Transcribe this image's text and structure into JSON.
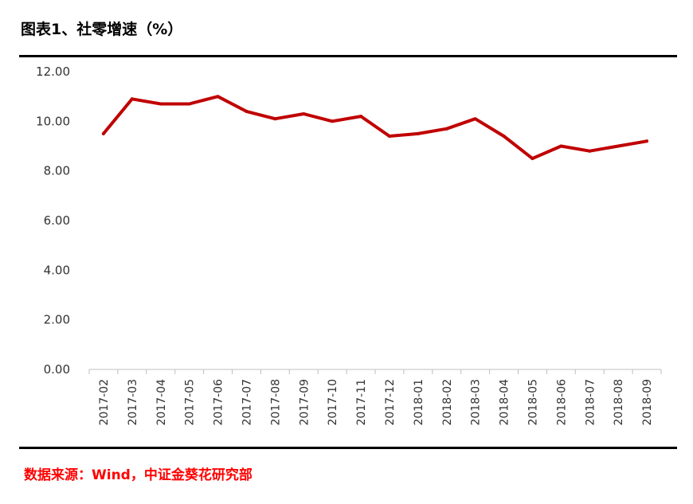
{
  "header": {
    "title": "图表1、社零增速（%）"
  },
  "footer": {
    "source": "数据来源：Wind，中证金葵花研究部"
  },
  "colors": {
    "line": "#c00000",
    "source": "#ff0000"
  },
  "chart_data": {
    "type": "line",
    "title": "图表1、社零增速（%）",
    "xlabel": "",
    "ylabel": "",
    "ylim": [
      0,
      12
    ],
    "y_ticks": [
      "0.00",
      "2.00",
      "4.00",
      "6.00",
      "8.00",
      "10.00",
      "12.00"
    ],
    "grid": false,
    "legend": "none",
    "categories": [
      "2017-02",
      "2017-03",
      "2017-04",
      "2017-05",
      "2017-06",
      "2017-07",
      "2017-08",
      "2017-09",
      "2017-10",
      "2017-11",
      "2017-12",
      "2018-01",
      "2018-02",
      "2018-03",
      "2018-04",
      "2018-05",
      "2018-06",
      "2018-07",
      "2018-08",
      "2018-09"
    ],
    "series": [
      {
        "values": [
          9.5,
          10.9,
          10.7,
          10.7,
          11.0,
          10.4,
          10.1,
          10.3,
          10.0,
          10.2,
          9.4,
          9.5,
          9.7,
          10.1,
          9.4,
          8.5,
          9.0,
          8.8,
          9.0,
          9.2
        ]
      }
    ]
  }
}
